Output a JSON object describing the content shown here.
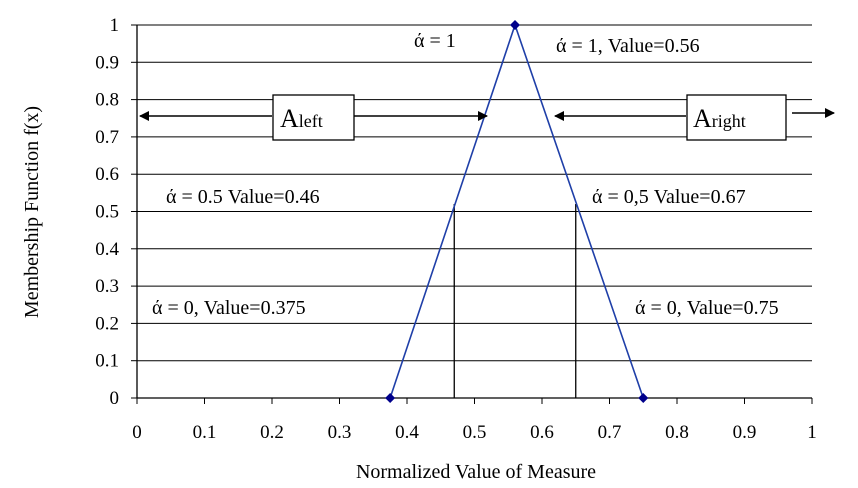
{
  "chart_data": {
    "type": "line",
    "xlabel": "Normalized Value of Measure",
    "ylabel": "Membership Function f(x)",
    "xlim": [
      0,
      1
    ],
    "ylim": [
      0,
      1
    ],
    "x_ticks": [
      "0",
      "0.1",
      "0.2",
      "0.3",
      "0.4",
      "0.5",
      "0.6",
      "0.7",
      "0.8",
      "0.9",
      "1"
    ],
    "y_ticks": [
      "0",
      "0.1",
      "0.2",
      "0.3",
      "0.4",
      "0.5",
      "0.6",
      "0.7",
      "0.8",
      "0.9",
      "1"
    ],
    "grid": "horizontal",
    "series": [
      {
        "x": [
          0.375,
          0.56,
          0.75
        ],
        "y": [
          0,
          1,
          0
        ],
        "color": "#1f3fa8",
        "marker": "diamond",
        "marker_color": "#00008b"
      }
    ],
    "vertical_lines": [
      {
        "x": 0.47,
        "y": 0.52
      },
      {
        "x": 0.65,
        "y": 0.52
      }
    ],
    "annotations": {
      "alpha1": "ά = 1",
      "alpha1_value": "ά = 1, Value=0.56",
      "alpha05_left": "ά = 0.5 Value=0.46",
      "alpha05_right": "ά = 0,5 Value=0.67",
      "alpha0_left": "ά = 0, Value=0.375",
      "alpha0_right": "ά = 0, Value=0.75"
    },
    "left_box": {
      "main": "A",
      "sub": "left"
    },
    "right_box": {
      "main": "A",
      "sub": "right"
    }
  }
}
